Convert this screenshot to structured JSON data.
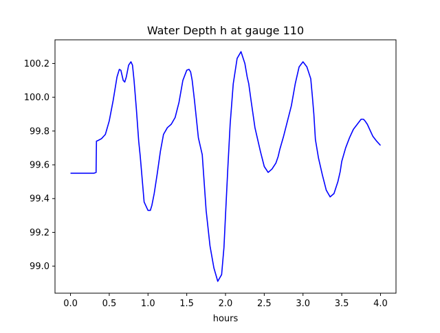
{
  "chart_data": {
    "type": "line",
    "title": "Water Depth h at gauge 110",
    "xlabel": "hours",
    "ylabel": "",
    "xlim": [
      -0.2,
      4.2
    ],
    "ylim": [
      98.84,
      100.34
    ],
    "grid": false,
    "xticks": [
      0.0,
      0.5,
      1.0,
      1.5,
      2.0,
      2.5,
      3.0,
      3.5,
      4.0
    ],
    "xtick_labels": [
      "0.0",
      "0.5",
      "1.0",
      "1.5",
      "2.0",
      "2.5",
      "3.0",
      "3.5",
      "4.0"
    ],
    "yticks": [
      99.0,
      99.2,
      99.4,
      99.6,
      99.8,
      100.0,
      100.2
    ],
    "ytick_labels": [
      "99.0",
      "99.2",
      "99.4",
      "99.6",
      "99.8",
      "100.0",
      "100.2"
    ],
    "series": [
      {
        "color": "#0000ff",
        "x": [
          0.0,
          0.1,
          0.2,
          0.3,
          0.33,
          0.335,
          0.36,
          0.4,
          0.45,
          0.5,
          0.55,
          0.6,
          0.63,
          0.65,
          0.68,
          0.7,
          0.72,
          0.75,
          0.78,
          0.8,
          0.82,
          0.85,
          0.88,
          0.9,
          0.95,
          1.0,
          1.03,
          1.05,
          1.08,
          1.12,
          1.16,
          1.2,
          1.25,
          1.3,
          1.35,
          1.4,
          1.45,
          1.5,
          1.53,
          1.55,
          1.57,
          1.6,
          1.65,
          1.7,
          1.75,
          1.8,
          1.85,
          1.9,
          1.95,
          1.98,
          2.0,
          2.03,
          2.06,
          2.1,
          2.15,
          2.2,
          2.25,
          2.28,
          2.3,
          2.33,
          2.38,
          2.45,
          2.5,
          2.55,
          2.6,
          2.65,
          2.68,
          2.7,
          2.75,
          2.8,
          2.85,
          2.9,
          2.95,
          3.0,
          3.05,
          3.1,
          3.12,
          3.14,
          3.16,
          3.2,
          3.25,
          3.3,
          3.35,
          3.4,
          3.45,
          3.48,
          3.5,
          3.55,
          3.6,
          3.65,
          3.7,
          3.75,
          3.78,
          3.8,
          3.83,
          3.86,
          3.9,
          3.95,
          4.0
        ],
        "y": [
          99.55,
          99.55,
          99.55,
          99.55,
          99.555,
          99.74,
          99.745,
          99.755,
          99.78,
          99.86,
          99.98,
          100.12,
          100.165,
          100.16,
          100.1,
          100.09,
          100.12,
          100.19,
          100.21,
          100.19,
          100.1,
          99.93,
          99.74,
          99.65,
          99.38,
          99.33,
          99.33,
          99.36,
          99.43,
          99.55,
          99.68,
          99.78,
          99.82,
          99.84,
          99.88,
          99.97,
          100.1,
          100.16,
          100.165,
          100.15,
          100.1,
          99.98,
          99.76,
          99.66,
          99.33,
          99.12,
          98.99,
          98.91,
          98.95,
          99.11,
          99.3,
          99.58,
          99.84,
          100.08,
          100.23,
          100.27,
          100.2,
          100.12,
          100.08,
          99.98,
          99.82,
          99.68,
          99.59,
          99.555,
          99.575,
          99.61,
          99.65,
          99.69,
          99.77,
          99.86,
          99.95,
          100.08,
          100.18,
          100.21,
          100.18,
          100.11,
          100.01,
          99.9,
          99.75,
          99.64,
          99.54,
          99.45,
          99.41,
          99.43,
          99.5,
          99.56,
          99.62,
          99.7,
          99.76,
          99.81,
          99.84,
          99.87,
          99.87,
          99.86,
          99.84,
          99.81,
          99.77,
          99.74,
          99.715
        ]
      }
    ]
  }
}
